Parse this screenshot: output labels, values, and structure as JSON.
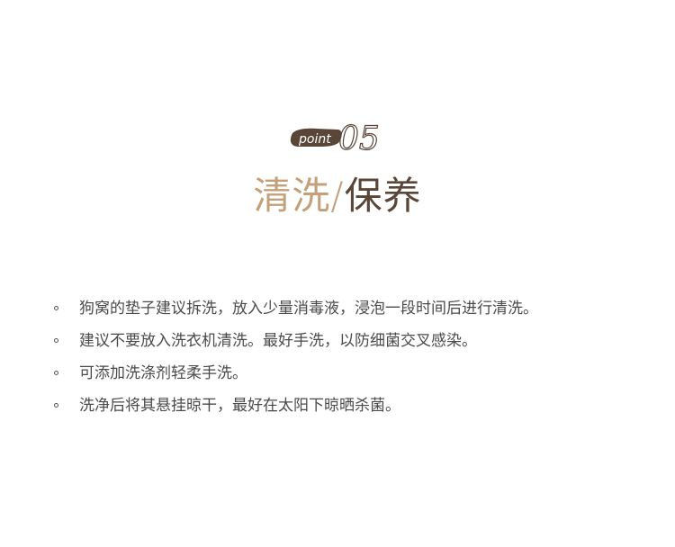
{
  "badge": {
    "label": "point",
    "number": "05",
    "color": "#5a4638"
  },
  "title": {
    "part1": "清洗",
    "slash": "/",
    "part2": "保养",
    "accent_color": "#c4a07a",
    "dark_color": "#5a4638"
  },
  "items": [
    {
      "text": "狗窝的垫子建议拆洗，放入少量消毒液，浸泡一段时间后进行清洗。"
    },
    {
      "text": "建议不要放入洗衣机清洗。最好手洗，以防细菌交叉感染。"
    },
    {
      "text": "可添加洗涤剂轻柔手洗。"
    },
    {
      "text": "洗净后将其悬挂晾干，最好在太阳下晾晒杀菌。"
    }
  ]
}
